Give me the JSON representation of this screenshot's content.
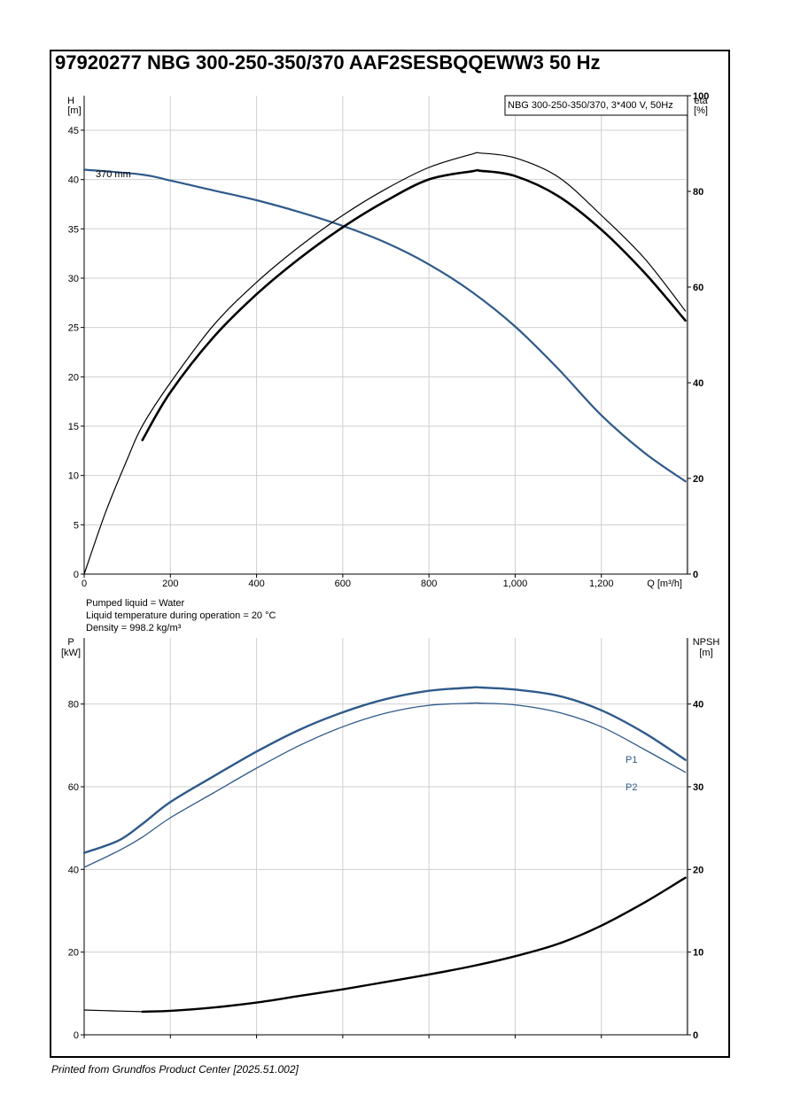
{
  "title": "97920277 NBG 300-250-350/370 AAF2SESBQQEWW3 50 Hz",
  "footer": "Printed from Grundfos Product Center [2025.51.002]",
  "colors": {
    "blue": "#2f5a8a",
    "black": "#000000",
    "grid": "#cfcfcf",
    "frame": "#000000"
  },
  "legend_box": "NBG 300-250-350/370, 3*400 V, 50Hz",
  "info_lines": [
    "Pumped liquid = Water",
    "Liquid temperature during operation = 20 °C",
    "Density = 998.2 kg/m³"
  ],
  "chart_data": [
    {
      "type": "line",
      "name": "head-efficiency",
      "x_label": "Q [m³/h]",
      "xlim": [
        0,
        1400
      ],
      "x_ticks": [
        0,
        200,
        400,
        600,
        800,
        1000,
        1200
      ],
      "x_tick_labels": [
        "0",
        "200",
        "400",
        "600",
        "800",
        "1,000",
        "1,200"
      ],
      "y_left": {
        "label_top": "H",
        "label_unit": "[m]",
        "lim": [
          0,
          48.5
        ],
        "ticks": [
          0,
          5,
          10,
          15,
          20,
          25,
          30,
          35,
          40,
          45
        ]
      },
      "y_right": {
        "label_top": "eta",
        "label_unit": "[%]",
        "lim": [
          0,
          100
        ],
        "ticks": [
          0,
          20,
          40,
          60,
          80,
          100
        ]
      },
      "grid": true,
      "curve_label": "370 mm",
      "series": [
        {
          "axis": "left",
          "color": "#2f5a8a",
          "width": 2.2,
          "x": [
            0,
            135,
            200,
            300,
            400,
            500,
            600,
            700,
            800,
            900,
            1000,
            1100,
            1200,
            1300,
            1395
          ],
          "y": [
            41.0,
            40.5,
            39.9,
            38.9,
            37.9,
            36.7,
            35.3,
            33.6,
            31.4,
            28.6,
            25.1,
            20.8,
            16.1,
            12.3,
            9.4
          ]
        },
        {
          "axis": "right",
          "color": "#000000",
          "width": 1.2,
          "x": [
            0,
            50,
            100,
            135,
            200,
            300,
            400,
            500,
            600,
            700,
            800,
            900,
            920,
            1000,
            1100,
            1200,
            1300,
            1395
          ],
          "y": [
            0,
            13,
            24,
            31,
            40,
            52,
            61,
            68.5,
            75,
            80.5,
            85,
            87.8,
            88,
            87,
            83,
            75,
            66,
            55
          ]
        },
        {
          "axis": "right",
          "color": "#000000",
          "width": 2.6,
          "x": [
            135,
            200,
            300,
            400,
            500,
            600,
            700,
            800,
            900,
            920,
            1000,
            1100,
            1200,
            1300,
            1395
          ],
          "y": [
            28,
            38,
            49.5,
            58.5,
            66,
            72.5,
            78,
            82.5,
            84.2,
            84.3,
            83.2,
            79,
            72,
            63,
            53
          ]
        }
      ]
    },
    {
      "type": "line",
      "name": "power-npsh",
      "xlim": [
        0,
        1400
      ],
      "x_ticks": [
        0,
        200,
        400,
        600,
        800,
        1000,
        1200
      ],
      "y_left": {
        "label_top": "P",
        "label_unit": "[kW]",
        "lim": [
          0,
          96
        ],
        "ticks": [
          0,
          20,
          40,
          60,
          80
        ]
      },
      "y_right": {
        "label_top": "NPSH",
        "label_unit": "[m]",
        "lim": [
          0,
          48
        ],
        "ticks": [
          0,
          10,
          20,
          30,
          40
        ]
      },
      "grid": true,
      "series": [
        {
          "name": "P1",
          "axis": "left",
          "color": "#2f5a8a",
          "width": 2.4,
          "x": [
            0,
            80,
            135,
            200,
            300,
            400,
            500,
            600,
            700,
            800,
            900,
            920,
            1000,
            1100,
            1200,
            1300,
            1395
          ],
          "y": [
            44,
            47,
            51,
            56.3,
            62.5,
            68.5,
            73.8,
            78,
            81.2,
            83.2,
            84,
            84,
            83.5,
            82,
            78.5,
            73,
            66.5
          ]
        },
        {
          "name": "P2",
          "axis": "left",
          "color": "#2f5a8a",
          "width": 1.3,
          "x": [
            0,
            80,
            135,
            200,
            300,
            400,
            500,
            600,
            700,
            800,
            900,
            920,
            1000,
            1100,
            1200,
            1300,
            1395
          ],
          "y": [
            40.5,
            44.5,
            47.8,
            52.5,
            58.5,
            64.5,
            70,
            74.5,
            77.8,
            79.7,
            80.2,
            80.2,
            79.8,
            78,
            74.5,
            69,
            63.5
          ]
        },
        {
          "name": "NPSH",
          "axis": "right",
          "color": "#000000",
          "width": 2.4,
          "x": [
            135,
            200,
            300,
            400,
            500,
            600,
            700,
            800,
            900,
            1000,
            1100,
            1200,
            1300,
            1395
          ],
          "y": [
            2.8,
            2.9,
            3.3,
            3.9,
            4.7,
            5.5,
            6.4,
            7.3,
            8.3,
            9.5,
            11.0,
            13.2,
            16.0,
            19.0
          ]
        },
        {
          "axis": "right",
          "color": "#000000",
          "width": 1.2,
          "x": [
            0,
            60,
            135
          ],
          "y": [
            3.0,
            2.9,
            2.8
          ]
        }
      ],
      "series_labels": [
        "P1",
        "P2"
      ]
    }
  ]
}
